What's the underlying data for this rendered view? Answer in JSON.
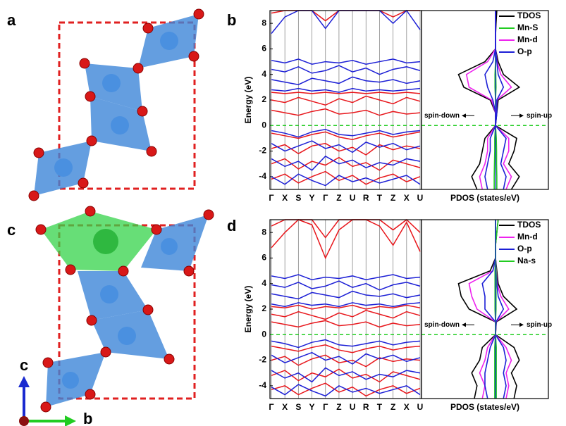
{
  "figure": {
    "panel_labels": [
      "a",
      "b",
      "c",
      "d"
    ],
    "axis_labels": [
      "c",
      "b"
    ]
  },
  "chart_data": [
    {
      "type": "band",
      "ylabel": "Energy (eV)",
      "categories": [
        "Γ",
        "X",
        "S",
        "Y",
        "Γ",
        "Z",
        "U",
        "R",
        "T",
        "Z",
        "X",
        "U"
      ],
      "ylim": [
        -5,
        9
      ],
      "yticks": [
        -4,
        -2,
        0,
        2,
        4,
        6,
        8
      ],
      "fermi_level": 0,
      "series": [
        {
          "color": "#e8161b",
          "values": [
            -0.6,
            -0.8,
            -1.0,
            -0.7,
            -0.5,
            -0.9,
            -1.1,
            -0.8,
            -0.6,
            -0.9,
            -0.7,
            -0.5
          ]
        },
        {
          "color": "#e8161b",
          "values": [
            -1.8,
            -1.5,
            -2.2,
            -1.6,
            -1.4,
            -2.0,
            -1.7,
            -2.3,
            -1.5,
            -1.9,
            -1.6,
            -1.8
          ]
        },
        {
          "color": "#e8161b",
          "values": [
            -3.0,
            -2.6,
            -3.4,
            -2.8,
            -3.1,
            -2.5,
            -3.2,
            -2.9,
            -3.5,
            -2.7,
            -3.0,
            -3.3
          ]
        },
        {
          "color": "#e8161b",
          "values": [
            -4.2,
            -3.8,
            -4.5,
            -4.0,
            -3.6,
            -4.3,
            -3.9,
            -4.6,
            -4.1,
            -3.8,
            -4.4,
            -4.0
          ]
        },
        {
          "color": "#e8161b",
          "values": [
            1.2,
            1.0,
            0.8,
            1.1,
            1.3,
            0.9,
            1.0,
            1.2,
            0.8,
            1.1,
            0.9,
            1.0
          ]
        },
        {
          "color": "#e8161b",
          "values": [
            2.0,
            1.8,
            2.2,
            1.9,
            1.6,
            2.1,
            1.8,
            2.3,
            2.0,
            1.7,
            2.2,
            1.9
          ]
        },
        {
          "color": "#e8161b",
          "values": [
            2.6,
            2.5,
            2.6,
            2.5,
            2.6,
            2.5,
            2.6,
            2.5,
            2.6,
            2.5,
            2.6,
            2.5
          ]
        },
        {
          "color": "#e8161b",
          "values": [
            8.8,
            9,
            9,
            9,
            8.2,
            9,
            9,
            9,
            9,
            8.5,
            9,
            9
          ]
        },
        {
          "color": "#1c1fd6",
          "values": [
            -0.4,
            -0.6,
            -0.9,
            -0.5,
            -0.3,
            -0.7,
            -0.8,
            -0.6,
            -0.4,
            -0.7,
            -0.5,
            -0.4
          ]
        },
        {
          "color": "#1c1fd6",
          "values": [
            -1.4,
            -2.0,
            -1.6,
            -1.2,
            -1.8,
            -1.5,
            -2.1,
            -1.3,
            -1.7,
            -1.4,
            -1.9,
            -1.6
          ]
        },
        {
          "color": "#1c1fd6",
          "values": [
            -2.6,
            -3.2,
            -2.8,
            -3.5,
            -2.4,
            -3.0,
            -2.7,
            -3.3,
            -2.9,
            -3.1,
            -2.6,
            -2.8
          ]
        },
        {
          "color": "#1c1fd6",
          "values": [
            -4.0,
            -4.6,
            -3.8,
            -4.3,
            -4.7,
            -3.9,
            -4.4,
            -4.1,
            -4.5,
            -4.2,
            -3.9,
            -4.6
          ]
        },
        {
          "color": "#1c1fd6",
          "values": [
            2.8,
            2.7,
            2.9,
            2.7,
            2.8,
            2.6,
            2.9,
            2.7,
            2.8,
            2.7,
            2.8,
            2.9
          ]
        },
        {
          "color": "#1c1fd6",
          "values": [
            3.6,
            3.4,
            3.2,
            3.7,
            3.5,
            3.3,
            3.8,
            3.5,
            3.4,
            3.6,
            3.3,
            3.5
          ]
        },
        {
          "color": "#1c1fd6",
          "values": [
            4.4,
            4.2,
            4.6,
            4.1,
            4.3,
            4.7,
            4.2,
            4.5,
            4.0,
            4.4,
            4.6,
            4.3
          ]
        },
        {
          "color": "#1c1fd6",
          "values": [
            5.1,
            4.9,
            5.2,
            4.8,
            5.0,
            4.9,
            5.1,
            4.8,
            5.0,
            5.2,
            4.9,
            5.0
          ]
        },
        {
          "color": "#1c1fd6",
          "values": [
            7.2,
            8.5,
            9,
            9,
            7.6,
            9,
            9,
            9,
            9,
            8,
            9,
            7.5
          ]
        }
      ]
    },
    {
      "type": "pdos",
      "xlabel": "PDOS (states/eV)",
      "ylim": [
        -5,
        9
      ],
      "xlim": [
        -28,
        20
      ],
      "fermi_level": 0,
      "legend": "upper right",
      "annotations": [
        "spin-down",
        "spin-up"
      ],
      "energies": [
        -5,
        -4,
        -3,
        -2,
        -1,
        0,
        1,
        2,
        3,
        4,
        5,
        6,
        7,
        8,
        9
      ],
      "series": [
        {
          "name": "TDOS",
          "color": "#000000",
          "up": [
            6,
            9,
            5,
            7,
            8,
            0,
            0.5,
            1,
            9,
            3,
            1,
            0,
            0,
            0.2,
            0.5
          ],
          "down": [
            -7,
            -9,
            -6,
            -5,
            -4,
            0,
            0,
            -2,
            -12,
            -14,
            -4,
            0,
            0,
            0,
            0
          ]
        },
        {
          "name": "Mn-S",
          "color": "#22cc22",
          "up": [
            0.5,
            0.5,
            0.4,
            0.4,
            0.3,
            0,
            0,
            0,
            0.2,
            0.1,
            0,
            0,
            0,
            0,
            0
          ],
          "down": [
            -0.5,
            -0.5,
            -0.4,
            -0.3,
            -0.3,
            0,
            0,
            0,
            -0.2,
            -0.2,
            0,
            0,
            0,
            0,
            0
          ]
        },
        {
          "name": "Mn-d",
          "color": "#ee22ee",
          "up": [
            4,
            6,
            3,
            5,
            5,
            0,
            0.3,
            0.6,
            6,
            2,
            0.6,
            0,
            0,
            0,
            0
          ],
          "down": [
            -5,
            -6,
            -4,
            -3,
            -3,
            0,
            0,
            -1.5,
            -10,
            -11,
            -3,
            0,
            0,
            0,
            0
          ]
        },
        {
          "name": "O-p",
          "color": "#1c1fd6",
          "up": [
            3,
            4,
            2,
            3,
            4,
            0,
            0.5,
            0.5,
            3,
            1,
            0.5,
            0,
            0,
            0,
            0
          ],
          "down": [
            -3,
            -4,
            -3,
            -2,
            -2,
            0,
            0,
            -1,
            -3,
            -4,
            -1,
            0,
            0,
            0,
            0
          ]
        }
      ]
    },
    {
      "type": "band",
      "ylabel": "Energy (eV)",
      "categories": [
        "Γ",
        "X",
        "S",
        "Y",
        "Γ",
        "Z",
        "U",
        "R",
        "T",
        "Z",
        "X",
        "U"
      ],
      "ylim": [
        -5,
        9
      ],
      "yticks": [
        -4,
        -2,
        0,
        2,
        4,
        6,
        8
      ],
      "fermi_level": 0,
      "series": [
        {
          "color": "#e8161b",
          "values": [
            -0.9,
            -1.1,
            -1.3,
            -1.0,
            -0.8,
            -1.2,
            -1.4,
            -1.1,
            -0.9,
            -1.2,
            -1.0,
            -0.9
          ]
        },
        {
          "color": "#e8161b",
          "values": [
            -2.0,
            -1.7,
            -2.4,
            -1.9,
            -1.6,
            -2.2,
            -2.0,
            -2.5,
            -1.8,
            -2.1,
            -1.9,
            -2.0
          ]
        },
        {
          "color": "#e8161b",
          "values": [
            -3.2,
            -2.8,
            -3.6,
            -3.0,
            -3.3,
            -2.7,
            -3.4,
            -3.1,
            -3.7,
            -2.9,
            -3.2,
            -3.5
          ]
        },
        {
          "color": "#e8161b",
          "values": [
            -4.3,
            -4.0,
            -4.7,
            -4.2,
            -3.8,
            -4.5,
            -4.1,
            -4.8,
            -4.3,
            -4.0,
            -4.6,
            -4.2
          ]
        },
        {
          "color": "#e8161b",
          "values": [
            1.0,
            0.8,
            0.6,
            0.9,
            1.1,
            0.7,
            0.8,
            1.0,
            0.6,
            0.9,
            0.7,
            0.8
          ]
        },
        {
          "color": "#e8161b",
          "values": [
            1.6,
            1.4,
            1.8,
            1.5,
            1.2,
            1.7,
            1.4,
            1.9,
            1.6,
            1.3,
            1.8,
            1.5
          ]
        },
        {
          "color": "#e8161b",
          "values": [
            2.2,
            2.1,
            2.3,
            2.0,
            2.2,
            2.1,
            2.3,
            2.0,
            2.2,
            2.1,
            2.3,
            2.1
          ]
        },
        {
          "color": "#e8161b",
          "values": [
            6.8,
            8.0,
            9,
            8.6,
            6.0,
            8.2,
            9,
            9,
            8.5,
            7.0,
            8.8,
            6.5
          ]
        },
        {
          "color": "#e8161b",
          "values": [
            8.5,
            9,
            9,
            9,
            7.6,
            9,
            9,
            9,
            9,
            8.2,
            9,
            8.0
          ]
        },
        {
          "color": "#1c1fd6",
          "values": [
            -0.5,
            -0.7,
            -1.0,
            -0.6,
            -0.4,
            -0.8,
            -0.9,
            -0.7,
            -0.5,
            -0.8,
            -0.6,
            -0.5
          ]
        },
        {
          "color": "#1c1fd6",
          "values": [
            -1.6,
            -2.2,
            -1.8,
            -1.4,
            -2.0,
            -1.7,
            -2.3,
            -1.5,
            -1.9,
            -1.6,
            -2.1,
            -1.8
          ]
        },
        {
          "color": "#1c1fd6",
          "values": [
            -2.8,
            -3.4,
            -3.0,
            -3.7,
            -2.6,
            -3.2,
            -2.9,
            -3.5,
            -3.1,
            -3.3,
            -2.8,
            -3.0
          ]
        },
        {
          "color": "#1c1fd6",
          "values": [
            -4.1,
            -4.7,
            -3.9,
            -4.4,
            -4.8,
            -4.0,
            -4.5,
            -4.2,
            -4.6,
            -4.3,
            -4.0,
            -4.7
          ]
        },
        {
          "color": "#1c1fd6",
          "values": [
            2.4,
            2.2,
            2.5,
            2.3,
            2.4,
            2.2,
            2.5,
            2.3,
            2.4,
            2.2,
            2.4,
            2.5
          ]
        },
        {
          "color": "#1c1fd6",
          "values": [
            3.2,
            3.0,
            2.8,
            3.3,
            3.1,
            2.9,
            3.4,
            3.1,
            3.0,
            3.2,
            2.9,
            3.1
          ]
        },
        {
          "color": "#1c1fd6",
          "values": [
            3.9,
            3.7,
            4.1,
            3.6,
            3.8,
            4.2,
            3.7,
            4.0,
            3.5,
            3.9,
            4.1,
            3.8
          ]
        },
        {
          "color": "#1c1fd6",
          "values": [
            4.6,
            4.4,
            4.7,
            4.3,
            4.5,
            4.4,
            4.6,
            4.3,
            4.5,
            4.7,
            4.4,
            4.5
          ]
        }
      ]
    },
    {
      "type": "pdos",
      "xlabel": "PDOS (states/eV)",
      "ylim": [
        -5,
        9
      ],
      "xlim": [
        -28,
        20
      ],
      "fermi_level": 0,
      "legend": "upper right",
      "annotations": [
        "spin-down",
        "spin-up"
      ],
      "energies": [
        -5,
        -4,
        -3,
        -2,
        -1,
        0,
        1,
        2,
        3,
        4,
        5,
        6,
        7,
        8,
        9
      ],
      "series": [
        {
          "name": "TDOS",
          "color": "#000000",
          "up": [
            7,
            8,
            6,
            9,
            7,
            0,
            0.3,
            8,
            3,
            1,
            0.5,
            0,
            0,
            0.5,
            1
          ],
          "down": [
            -8,
            -7,
            -9,
            -6,
            -5,
            0,
            0,
            -10,
            -13,
            -14,
            -2,
            0,
            0,
            0,
            0
          ]
        },
        {
          "name": "Mn-d",
          "color": "#ee22ee",
          "up": [
            4,
            5,
            4,
            6,
            4,
            0,
            0.2,
            5,
            2,
            0.6,
            0.3,
            0,
            0,
            0,
            0
          ],
          "down": [
            -5,
            -4,
            -6,
            -4,
            -3,
            0,
            0,
            -7,
            -9,
            -10,
            -1,
            0,
            0,
            0,
            0
          ]
        },
        {
          "name": "O-p",
          "color": "#1c1fd6",
          "up": [
            3,
            4,
            3,
            4,
            3,
            0,
            0.2,
            3,
            1,
            0.5,
            0.2,
            0,
            0,
            0,
            0
          ],
          "down": [
            -3,
            -4,
            -4,
            -3,
            -2,
            0,
            0,
            -4,
            -4,
            -5,
            -1,
            0,
            0,
            0,
            0
          ]
        },
        {
          "name": "Na-s",
          "color": "#22cc22",
          "up": [
            0.3,
            0.3,
            0.3,
            0.3,
            0.3,
            0,
            0,
            0.2,
            0.2,
            0.2,
            0.2,
            0,
            0,
            0.5,
            1
          ],
          "down": [
            -0.3,
            -0.3,
            -0.3,
            -0.3,
            -0.3,
            0,
            0,
            -0.2,
            -0.2,
            -0.2,
            -0.2,
            0,
            0,
            0,
            0
          ]
        }
      ]
    }
  ]
}
